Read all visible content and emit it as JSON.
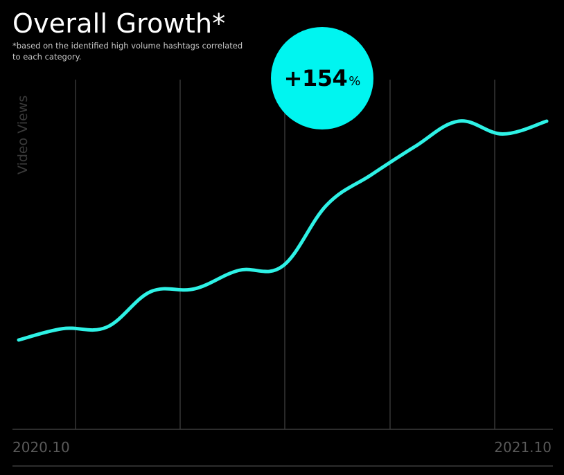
{
  "title": "Overall Growth*",
  "subtitle": "*based on the identified high volume hashtags correlated to each category.",
  "badge": {
    "value": "+154",
    "unit": "%"
  },
  "colors": {
    "background": "#000000",
    "accent": "#00f5f0",
    "line": "#2ef2e6",
    "gridline": "#444444",
    "axis_label": "#3a3a3a",
    "tick_label": "#5a5a5a"
  },
  "chart_data": {
    "type": "line",
    "title": "Overall Growth*",
    "xlabel": "",
    "ylabel": "Video Views",
    "x_tick_labels": [
      "2020.10",
      "2021.10"
    ],
    "x_range": [
      "2020.10",
      "2021.10"
    ],
    "grid": "vertical",
    "y_axis_numbers_shown": false,
    "growth_label": "+154%",
    "series": [
      {
        "values": [
          100,
          108,
          109,
          134,
          136,
          149,
          152,
          195,
          216,
          236,
          254,
          245,
          254
        ]
      }
    ]
  }
}
